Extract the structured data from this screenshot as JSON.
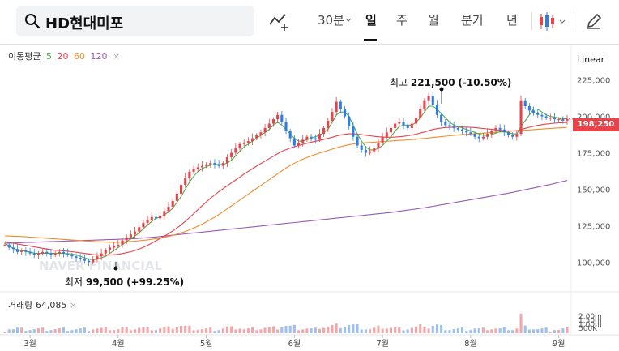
{
  "search": {
    "value": "HD현대미포"
  },
  "toolbar": {
    "interval": "30분",
    "tabs": [
      "일",
      "주",
      "월",
      "분기",
      "년"
    ],
    "active_tab": "일"
  },
  "ma_legend": {
    "label": "이동평균",
    "periods": [
      {
        "value": "5",
        "color": "#4caf50"
      },
      {
        "value": "20",
        "color": "#e8424a"
      },
      {
        "value": "60",
        "color": "#f08c2a"
      },
      {
        "value": "120",
        "color": "#9b59b6"
      }
    ],
    "close": "×"
  },
  "scale_mode": "Linear",
  "current_price": "198,250",
  "annotations": {
    "high_label": "최고",
    "high_value": "221,500",
    "high_pct": "(-10.50%)",
    "low_label": "최저",
    "low_value": "99,500",
    "low_pct": "(+99.25%)"
  },
  "volume": {
    "label": "거래량",
    "value": "64,085",
    "close": "×"
  },
  "watermark": "NAVER FINANCIAL",
  "chart_data": {
    "type": "candlestick",
    "ylim": [
      88000,
      232000
    ],
    "y_ticks": [
      "225,000",
      "200,000",
      "175,000",
      "150,000",
      "125,000",
      "100,000"
    ],
    "y_tick_values": [
      225000,
      200000,
      175000,
      150000,
      125000,
      100000
    ],
    "x_ticks": [
      "3월",
      "4월",
      "5월",
      "6월",
      "7월",
      "8월",
      "9월"
    ],
    "x_tick_index": [
      6,
      27,
      48,
      69,
      90,
      111,
      132
    ],
    "volume_ticks": [
      "2.00m",
      "1.50m",
      "1.00m",
      "500K"
    ],
    "close": [
      112000,
      110000,
      109000,
      107000,
      108000,
      107000,
      106000,
      105000,
      106000,
      107000,
      106000,
      105000,
      106000,
      107000,
      106000,
      105000,
      104000,
      103000,
      102000,
      101000,
      100000,
      102000,
      104000,
      106000,
      108000,
      110000,
      111000,
      112000,
      115000,
      117000,
      119000,
      121000,
      124000,
      127000,
      129000,
      131000,
      130000,
      132000,
      135000,
      138000,
      142000,
      147000,
      153000,
      158000,
      162000,
      164000,
      165000,
      166000,
      167000,
      168000,
      167000,
      166000,
      168000,
      172000,
      175000,
      178000,
      181000,
      182000,
      183000,
      185000,
      187000,
      189000,
      192000,
      195000,
      198000,
      201000,
      196000,
      190000,
      185000,
      180000,
      182000,
      184000,
      186000,
      185000,
      184000,
      188000,
      192000,
      197000,
      203000,
      210000,
      205000,
      200000,
      193000,
      186000,
      180000,
      177000,
      175000,
      176000,
      178000,
      182000,
      186000,
      189000,
      192000,
      195000,
      196000,
      194000,
      192000,
      195000,
      199000,
      205000,
      211000,
      214000,
      208000,
      201000,
      196000,
      194000,
      193000,
      192000,
      191000,
      190000,
      189000,
      188000,
      186000,
      185000,
      186000,
      188000,
      190000,
      192000,
      191000,
      189000,
      187000,
      186000,
      188000,
      211000,
      207000,
      204000,
      202000,
      201000,
      200000,
      199000,
      199000,
      198000,
      198000,
      197000,
      198250
    ],
    "ma5": [
      113000,
      111000,
      109500,
      108000,
      108000,
      107500,
      107000,
      106200,
      106000,
      106000,
      106200,
      106000,
      106000,
      106000,
      106000,
      105800,
      105600,
      105000,
      104000,
      103000,
      102000,
      101800,
      102000,
      103000,
      104000,
      106000,
      108000,
      110000,
      112000,
      114000,
      116000,
      118000,
      120000,
      123000,
      125500,
      128000,
      130000,
      131000,
      132500,
      134500,
      137000,
      141000,
      145000,
      150000,
      155000,
      159000,
      162000,
      164000,
      165500,
      166500,
      167000,
      167000,
      167000,
      168000,
      170000,
      173000,
      176000,
      179000,
      181000,
      183000,
      185000,
      187000,
      189000,
      191000,
      194000,
      196000,
      194000,
      191000,
      188000,
      185000,
      183000,
      183000,
      184000,
      185000,
      186000,
      187000,
      189000,
      191000,
      196000,
      201000,
      203000,
      203000,
      200000,
      194000,
      188000,
      183000,
      179000,
      177000,
      177000,
      178000,
      180000,
      183000,
      186000,
      190000,
      193000,
      194000,
      194000,
      194000,
      196000,
      199000,
      203000,
      207000,
      207000,
      205000,
      202000,
      199000,
      196000,
      194000,
      193000,
      192000,
      191000,
      190000,
      189000,
      188000,
      187000,
      187000,
      187500,
      188500,
      189500,
      189500,
      189000,
      188000,
      188000,
      193000,
      197000,
      201000,
      205000,
      205000,
      203000,
      201000,
      200000,
      199500,
      199000,
      198500,
      198200
    ],
    "ma20": [
      114000,
      113500,
      113000,
      112500,
      112000,
      111500,
      111000,
      110500,
      110000,
      109500,
      109000,
      108500,
      108200,
      108000,
      107800,
      107500,
      107200,
      106800,
      106400,
      106000,
      105600,
      105200,
      104900,
      104800,
      104800,
      104900,
      105100,
      105400,
      105900,
      106500,
      107200,
      108000,
      109000,
      110200,
      111600,
      113100,
      114700,
      116300,
      117900,
      119600,
      121400,
      123400,
      125600,
      128000,
      130600,
      133300,
      136000,
      138700,
      141300,
      143800,
      146100,
      148300,
      150400,
      152400,
      154400,
      156400,
      158400,
      160400,
      162300,
      164100,
      165900,
      167600,
      169300,
      171000,
      172700,
      174400,
      176000,
      177200,
      178300,
      179200,
      180000,
      180800,
      181600,
      182300,
      182900,
      183500,
      184200,
      184900,
      185700,
      186500,
      187200,
      187700,
      188000,
      188000,
      187800,
      187500,
      187100,
      186700,
      186300,
      186000,
      185800,
      185700,
      185700,
      185800,
      186000,
      186300,
      186700,
      187200,
      187800,
      188500,
      189300,
      190200,
      191000,
      191600,
      192000,
      192300,
      192500,
      192600,
      192700,
      192700,
      192600,
      192500,
      192300,
      192000,
      191700,
      191400,
      191100,
      190800,
      190500,
      190200,
      190000,
      190000,
      190100,
      191000,
      191800,
      192500,
      193200,
      193800,
      194300,
      194700,
      195000,
      195300,
      195500,
      195700,
      195900
    ],
    "ma60": [
      118000,
      117900,
      117800,
      117700,
      117600,
      117400,
      117200,
      117000,
      116800,
      116600,
      116400,
      116200,
      116000,
      115800,
      115600,
      115400,
      115200,
      115000,
      114800,
      114600,
      114400,
      114200,
      114000,
      113900,
      113800,
      113700,
      113700,
      113700,
      113800,
      114000,
      114200,
      114400,
      114700,
      115000,
      115300,
      115700,
      116100,
      116600,
      117100,
      117700,
      118400,
      119200,
      120100,
      121100,
      122200,
      123400,
      124700,
      126100,
      127600,
      129200,
      130900,
      132700,
      134600,
      136600,
      138600,
      140600,
      142600,
      144600,
      146600,
      148600,
      150600,
      152600,
      154600,
      156600,
      158600,
      160600,
      162600,
      164500,
      166300,
      167900,
      169300,
      170600,
      171800,
      172900,
      173900,
      174800,
      175700,
      176600,
      177500,
      178400,
      179200,
      179900,
      180500,
      181000,
      181400,
      181700,
      181900,
      182100,
      182300,
      182500,
      182700,
      182900,
      183100,
      183300,
      183500,
      183700,
      183900,
      184100,
      184300,
      184600,
      184900,
      185200,
      185500,
      185800,
      186100,
      186400,
      186700,
      187000,
      187300,
      187500,
      187700,
      187900,
      188100,
      188300,
      188500,
      188700,
      188900,
      189100,
      189300,
      189500,
      189700,
      189900,
      190100,
      190300,
      190500,
      190700,
      190900,
      191100,
      191300,
      191500,
      191700,
      191900,
      192100,
      192300,
      192500
    ],
    "ma120": [
      113000,
      113100,
      113200,
      113300,
      113400,
      113500,
      113600,
      113700,
      113800,
      113900,
      114000,
      114100,
      114200,
      114300,
      114400,
      114500,
      114600,
      114700,
      114800,
      114900,
      115000,
      115100,
      115200,
      115300,
      115400,
      115500,
      115600,
      115700,
      115800,
      115900,
      116000,
      116200,
      116400,
      116600,
      116800,
      117000,
      117300,
      117600,
      117900,
      118200,
      118500,
      118800,
      119100,
      119400,
      119700,
      120000,
      120300,
      120600,
      120900,
      121200,
      121500,
      121800,
      122100,
      122400,
      122700,
      123000,
      123300,
      123600,
      123900,
      124200,
      124500,
      124800,
      125100,
      125400,
      125700,
      126000,
      126300,
      126600,
      126900,
      127200,
      127500,
      127800,
      128100,
      128400,
      128700,
      129000,
      129300,
      129600,
      129900,
      130200,
      130500,
      130800,
      131100,
      131400,
      131700,
      132000,
      132300,
      132600,
      132900,
      133200,
      133500,
      133800,
      134100,
      134500,
      134900,
      135300,
      135700,
      136100,
      136500,
      136900,
      137300,
      137800,
      138300,
      138800,
      139300,
      139800,
      140300,
      140800,
      141300,
      141800,
      142300,
      142800,
      143300,
      143800,
      144300,
      144800,
      145300,
      145800,
      146300,
      146800,
      147300,
      147900,
      148500,
      149100,
      149700,
      150300,
      150900,
      151500,
      152100,
      152700,
      153300,
      154000,
      154700,
      155400,
      156100
    ]
  }
}
